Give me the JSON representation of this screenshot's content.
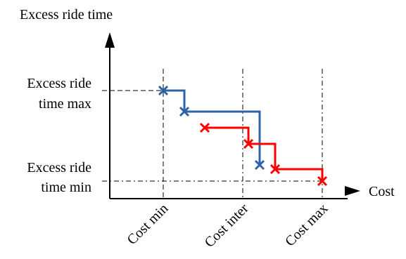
{
  "y_axis_label": "Excess ride time",
  "x_axis_label": "Cost",
  "y_ticks": {
    "max_line1": "Excess ride",
    "max_line2": "time max",
    "min_line1": "Excess ride",
    "min_line2": "time min"
  },
  "x_ticks": {
    "min": "Cost min",
    "inter": "Cost inter",
    "max": "Cost max"
  },
  "colors": {
    "blue_series": "#2e63a8",
    "red_series": "#ff0000",
    "axes": "#000000"
  },
  "series": {
    "blue": {
      "marker": "x",
      "points": 3
    },
    "red": {
      "marker": "x",
      "points": 4
    }
  }
}
